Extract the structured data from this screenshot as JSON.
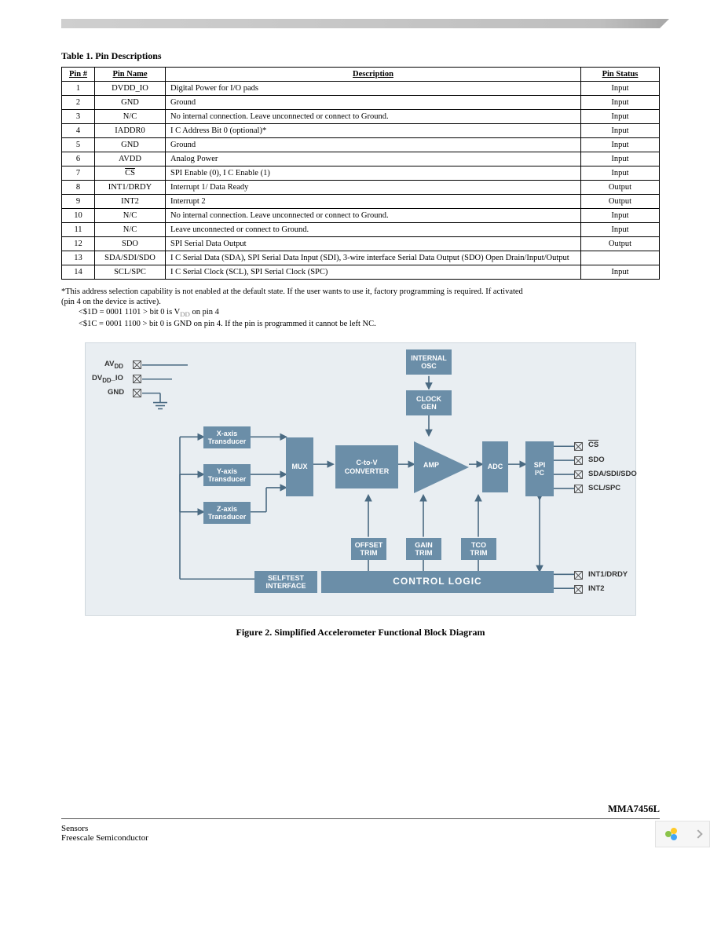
{
  "table": {
    "caption": "Table 1. Pin Descriptions",
    "headers": {
      "c0": "Pin #",
      "c1": "Pin Name",
      "c2": "Description",
      "c3": "Pin Status"
    },
    "rows": [
      {
        "num": "1",
        "name": "DVDD_IO",
        "desc": "Digital Power for I/O pads",
        "status": "Input"
      },
      {
        "num": "2",
        "name": "GND",
        "desc": "Ground",
        "status": "Input"
      },
      {
        "num": "3",
        "name": "N/C",
        "desc": "No internal connection. Leave unconnected or connect to Ground.",
        "status": "Input"
      },
      {
        "num": "4",
        "name": "IADDR0",
        "desc": "I  C Address Bit 0 (optional)*",
        "status": "Input"
      },
      {
        "num": "5",
        "name": "GND",
        "desc": "Ground",
        "status": "Input"
      },
      {
        "num": "6",
        "name": "AVDD",
        "desc": "Analog Power",
        "status": "Input"
      },
      {
        "num": "7",
        "name": "CS",
        "desc": "SPI Enable (0), I           C Enable (1)",
        "status": "Input",
        "overline": true
      },
      {
        "num": "8",
        "name": "INT1/DRDY",
        "desc": "Interrupt 1/ Data Ready",
        "status": "Output"
      },
      {
        "num": "9",
        "name": "INT2",
        "desc": "Interrupt 2",
        "status": "Output"
      },
      {
        "num": "10",
        "name": "N/C",
        "desc": "No internal connection. Leave unconnected or connect to Ground.",
        "status": "Input"
      },
      {
        "num": "11",
        "name": "N/C",
        "desc": "Leave unconnected or connect to Ground.",
        "status": "Input"
      },
      {
        "num": "12",
        "name": "SDO",
        "desc": "SPI Serial Data Output",
        "status": "Output"
      },
      {
        "num": "13",
        "name": "SDA/SDI/SDO",
        "desc": "I  C Serial Data (SDA), SPI Serial Data Input (SDI), 3-wire interface Serial Data Output (SDO) Open Drain/Input/Output",
        "status": ""
      },
      {
        "num": "14",
        "name": "SCL/SPC",
        "desc": "I  C Serial Clock (SCL), SPI Serial Clock (SPC)",
        "status": "Input"
      }
    ]
  },
  "notes": {
    "n1": "*This address selection capability is not enabled at the default state. If the user wants to use it, factory programming is required. If activated",
    "n2": "(pin 4 on the device is active).",
    "n3a": "<$1D = 0001 1101 > bit 0 is V",
    "n3b": "DD",
    "n3c": " on pin 4",
    "n4": "<$1C = 0001 1100 > bit 0 is GND on pin 4. If the pin is programmed it cannot be left NC."
  },
  "diagram": {
    "blocks": {
      "int_osc": "INTERNAL\nOSC",
      "clock_gen": "CLOCK\nGEN",
      "x_trans": "X-axis\nTransducer",
      "y_trans": "Y-axis\nTransducer",
      "z_trans": "Z-axis\nTransducer",
      "mux": "MUX",
      "ctov": "C-to-V\nCONVERTER",
      "amp": "AMP",
      "adc": "ADC",
      "spi": "SPI\nI²C",
      "off_trim": "OFFSET\nTRIM",
      "gain_trim": "GAIN\nTRIM",
      "tco_trim": "TCO\nTRIM",
      "selftest": "SELFTEST\nINTERFACE",
      "ctrl_logic": "CONTROL LOGIC"
    },
    "left_pins": {
      "avdd": "AV",
      "avdd_sub": "DD",
      "dvdd": "DV",
      "dvdd_sub": "DD",
      "dvdd_suf": "_IO",
      "gnd": "GND"
    },
    "right_pins": {
      "cs": "CS",
      "sdo": "SDO",
      "sda": "SDA/SDI/SDO",
      "scl": "SCL/SPC",
      "int1": "INT1/DRDY",
      "int2": "INT2"
    },
    "bg_color": "#e9eef2",
    "block_color": "#6b8ea8",
    "wire_color": "#4a6a82"
  },
  "figure_caption": "Figure 2. Simplified Accelerometer Functional Block Diagram",
  "footer": {
    "product": "MMA7456L",
    "line1": "Sensors",
    "line2": "Freescale Semiconductor"
  }
}
